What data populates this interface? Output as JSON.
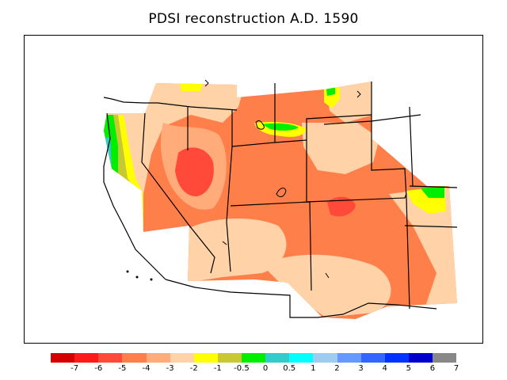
{
  "title": "PDSI reconstruction A.D. 1590",
  "palette": {
    "m7": "#d40000",
    "m6": "#ff1a1a",
    "m5": "#ff4a3a",
    "m4": "#ff7f4a",
    "m3": "#ffab7a",
    "m2": "#ffd2a8",
    "m1": "#ffff00",
    "m05": "#c8c832",
    "z0": "#00ee00",
    "p05": "#33cccc",
    "p1": "#00ffff",
    "p2": "#9ecbf0",
    "p3": "#6699ff",
    "p4": "#3366ff",
    "p5": "#0033ff",
    "p6": "#0000cc",
    "p7": "#888888"
  },
  "colorbar": {
    "colors": [
      "#d40000",
      "#ff1a1a",
      "#ff4a3a",
      "#ff7f4a",
      "#ffab7a",
      "#ffd2a8",
      "#ffff00",
      "#c8c832",
      "#00ee00",
      "#33cccc",
      "#00ffff",
      "#9ecbf0",
      "#6699ff",
      "#3366ff",
      "#0033ff",
      "#0000cc",
      "#888888"
    ],
    "tick_labels": [
      "-7",
      "-6",
      "-5",
      "-4",
      "-3",
      "-2",
      "-1",
      "-0.5",
      "0",
      "0.5",
      "1",
      "2",
      "3",
      "4",
      "5",
      "6",
      "7"
    ]
  }
}
